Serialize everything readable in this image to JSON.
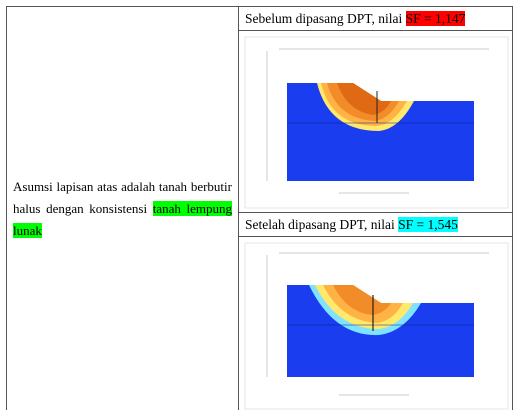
{
  "left": {
    "text": "Asumsi lapisan atas adalah tanah berbutir halus dengan konsistensi",
    "highlight": "tanah lempung lunak"
  },
  "rows": [
    {
      "label": "Sebelum dipasang DPT, nilai ",
      "sf": "SF = 1,147"
    },
    {
      "label": "Setelah dipasang DPT, nilai ",
      "sf": "SF = 1,545"
    }
  ]
}
